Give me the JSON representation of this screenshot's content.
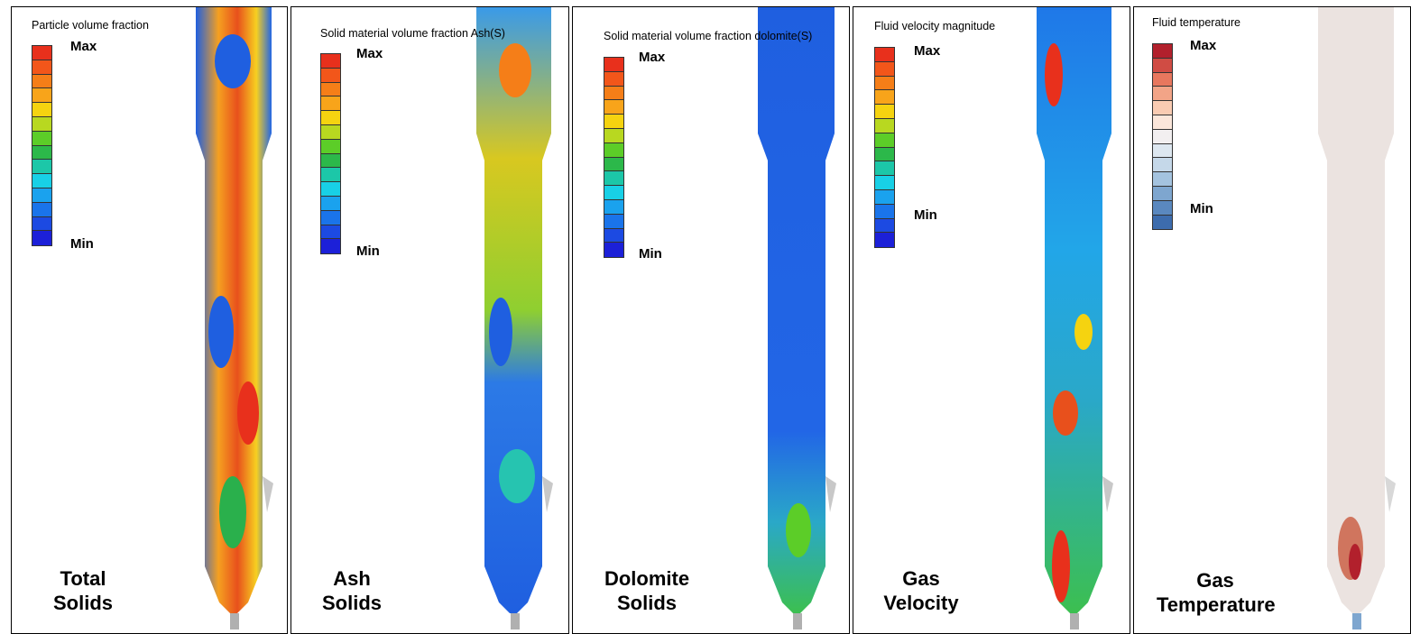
{
  "panels": [
    {
      "legend_title": "Particle volume fraction",
      "max_label": "Max",
      "min_label": "Min",
      "caption_line1": "Total",
      "caption_line2": "Solids",
      "scale_colors": [
        "#e8301c",
        "#f2561a",
        "#f57e18",
        "#f8a41a",
        "#f5d310",
        "#b8d820",
        "#5ccd28",
        "#2cb84a",
        "#1cc7a8",
        "#18d0e6",
        "#1aa2ee",
        "#1a74ea",
        "#1c4ae2",
        "#1c20d8"
      ]
    },
    {
      "legend_title": "Solid material volume fraction Ash(S)",
      "max_label": "Max",
      "min_label": "Min",
      "caption_line1": "Ash",
      "caption_line2": "Solids",
      "scale_colors": [
        "#e8301c",
        "#f2561a",
        "#f57e18",
        "#f8a41a",
        "#f5d310",
        "#b8d820",
        "#5ccd28",
        "#2cb84a",
        "#1cc7a8",
        "#18d0e6",
        "#1aa2ee",
        "#1a74ea",
        "#1c4ae2",
        "#1c20d8"
      ]
    },
    {
      "legend_title": "Solid material volume fraction dolomite(S)",
      "max_label": "Max",
      "min_label": "Min",
      "caption_line1": "Dolomite",
      "caption_line2": "Solids",
      "scale_colors": [
        "#e8301c",
        "#f2561a",
        "#f57e18",
        "#f8a41a",
        "#f5d310",
        "#b8d820",
        "#5ccd28",
        "#2cb84a",
        "#1cc7a8",
        "#18d0e6",
        "#1aa2ee",
        "#1a74ea",
        "#1c4ae2",
        "#1c20d8"
      ]
    },
    {
      "legend_title": "Fluid velocity magnitude",
      "max_label": "Max",
      "min_label": "Min",
      "caption_line1": "Gas",
      "caption_line2": "Velocity",
      "scale_colors": [
        "#e8301c",
        "#f2561a",
        "#f57e18",
        "#f8a41a",
        "#f5d310",
        "#b8d820",
        "#5ccd28",
        "#2cb84a",
        "#1cc7a8",
        "#18d0e6",
        "#1aa2ee",
        "#1a74ea",
        "#1c4ae2",
        "#1c20d8"
      ]
    },
    {
      "legend_title": "Fluid temperature",
      "max_label": "Max",
      "min_label": "Min",
      "caption_line1": "Gas",
      "caption_line2": "Temperature",
      "scale_colors": [
        "#b2202c",
        "#d04c44",
        "#e8775e",
        "#f2a487",
        "#f9cbb2",
        "#fbe6da",
        "#f2eff0",
        "#dde7f0",
        "#c5d8e9",
        "#a4c3df",
        "#7ea6cf",
        "#5a88bf",
        "#3d6cad"
      ]
    }
  ]
}
